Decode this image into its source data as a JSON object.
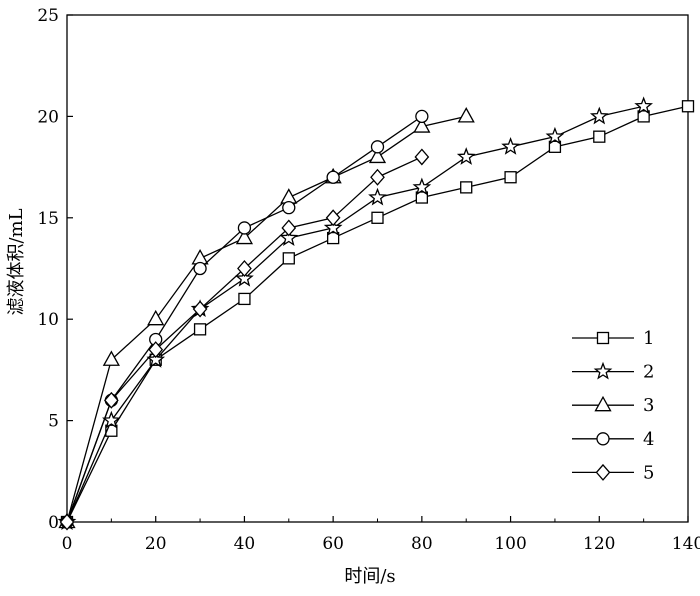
{
  "chart_data": {
    "type": "line",
    "xlabel": "时间/s",
    "ylabel": "滤液体积/mL",
    "xlim": [
      0,
      140
    ],
    "ylim": [
      0,
      25
    ],
    "xticks": [
      0,
      20,
      40,
      60,
      80,
      100,
      120,
      140
    ],
    "yticks": [
      0,
      5,
      10,
      15,
      20,
      25
    ],
    "grid": false,
    "legend_position": "bottom-right",
    "series": [
      {
        "name": "1",
        "marker": "square",
        "x": [
          0,
          10,
          20,
          30,
          40,
          50,
          60,
          70,
          80,
          90,
          100,
          110,
          120,
          130,
          140
        ],
        "y": [
          0,
          4.5,
          8,
          9.5,
          11,
          13,
          14,
          15,
          16,
          16.5,
          17,
          18.5,
          19,
          20,
          20.5
        ]
      },
      {
        "name": "2",
        "marker": "star",
        "x": [
          0,
          10,
          20,
          30,
          40,
          50,
          60,
          70,
          80,
          90,
          100,
          110,
          120,
          130
        ],
        "y": [
          0,
          5,
          8,
          10.5,
          12,
          14,
          14.5,
          16,
          16.5,
          18,
          18.5,
          19,
          20,
          20.5
        ]
      },
      {
        "name": "3",
        "marker": "triangle",
        "x": [
          0,
          10,
          20,
          30,
          40,
          50,
          60,
          70,
          80,
          90
        ],
        "y": [
          0,
          8,
          10,
          13,
          14,
          16,
          17,
          18,
          19.5,
          20
        ]
      },
      {
        "name": "4",
        "marker": "circle",
        "x": [
          0,
          10,
          20,
          30,
          40,
          50,
          60,
          70,
          80
        ],
        "y": [
          0,
          6,
          9,
          12.5,
          14.5,
          15.5,
          17,
          18.5,
          20
        ]
      },
      {
        "name": "5",
        "marker": "diamond",
        "x": [
          0,
          10,
          20,
          30,
          40,
          50,
          60,
          70,
          80
        ],
        "y": [
          0,
          6,
          8.5,
          10.5,
          12.5,
          14.5,
          15,
          17,
          18
        ]
      }
    ]
  }
}
